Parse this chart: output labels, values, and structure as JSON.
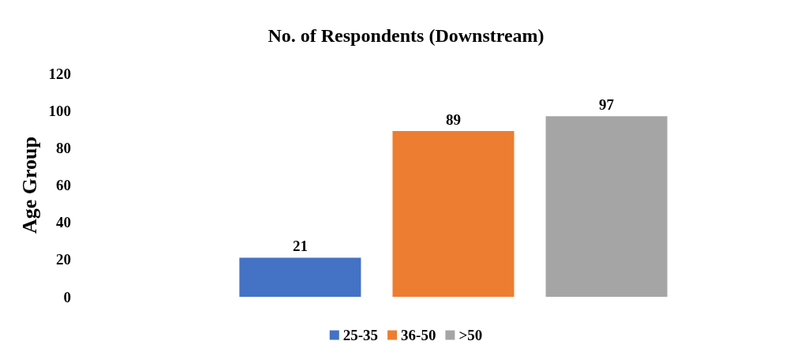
{
  "chart_data": {
    "type": "bar",
    "title": "No. of Respondents (Downstream)",
    "ylabel": "Age Group",
    "categories": [
      null
    ],
    "series": [
      {
        "name": "25-35",
        "color": "#4472c4",
        "values": [
          21
        ]
      },
      {
        "name": "36-50",
        "color": "#ed7d31",
        "values": [
          89
        ]
      },
      {
        "name": ">50",
        "color": "#a5a5a5",
        "values": [
          97
        ]
      }
    ],
    "ylim": [
      0,
      120
    ],
    "yticks": [
      0,
      20,
      40,
      60,
      80,
      100,
      120
    ],
    "grid": false,
    "legend": "bottom",
    "data_labels": true
  }
}
